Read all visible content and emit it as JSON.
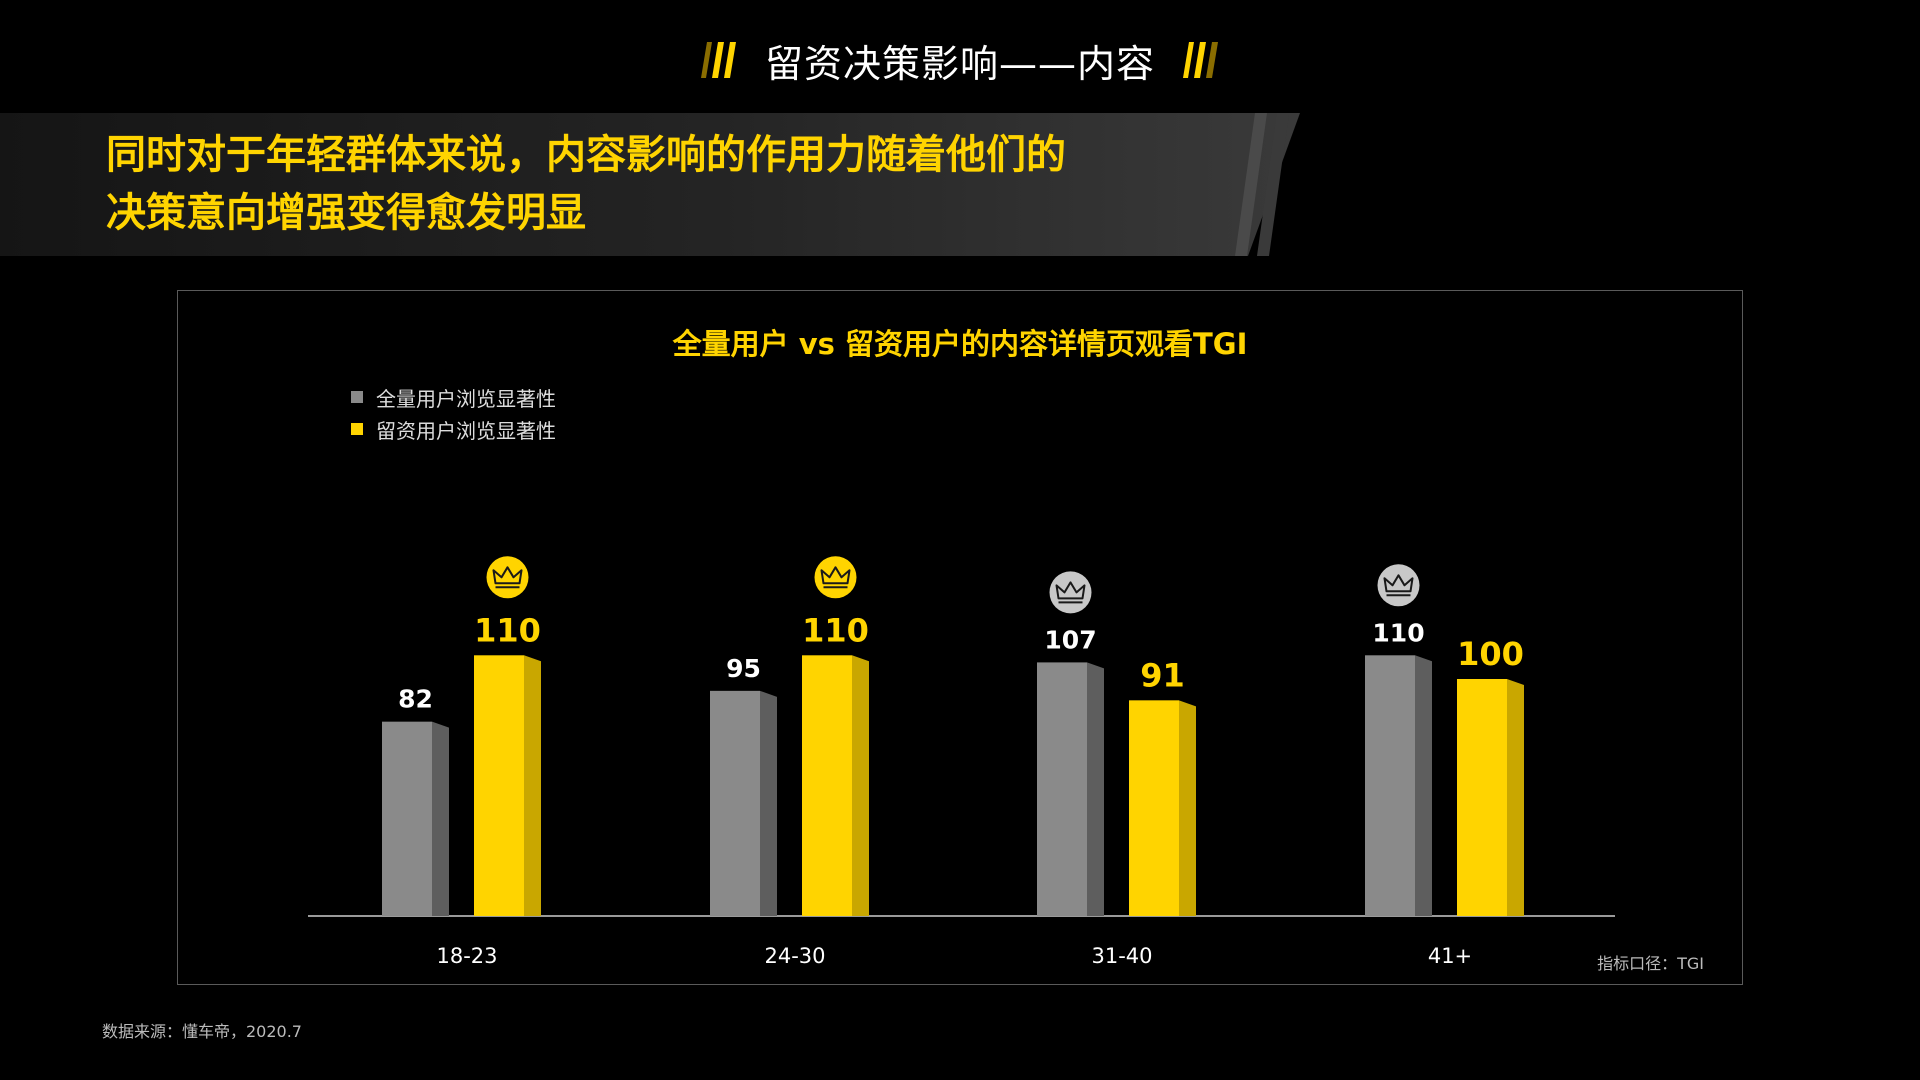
{
  "header": {
    "title": "留资决策影响——内容"
  },
  "headline": {
    "line1": "同时对于年轻群体来说，内容影响的作用力随着他们的",
    "line2": "决策意向增强变得愈发明显"
  },
  "colors": {
    "accent": "#FFD400",
    "gray": "#8a8a8a",
    "background": "#000000"
  },
  "chart_data": {
    "type": "bar",
    "title": "全量用户 vs 留资用户的内容详情页观看TGI",
    "categories": [
      "18-23",
      "24-30",
      "31-40",
      "41+"
    ],
    "series": [
      {
        "name": "全量用户浏览显著性",
        "values": [
          82,
          95,
          107,
          110
        ],
        "color": "#8a8a8a"
      },
      {
        "name": "留资用户浏览显著性",
        "values": [
          110,
          110,
          91,
          100
        ],
        "color": "#FFD400"
      }
    ],
    "crown_marks": [
      {
        "category": "18-23",
        "series": "留资用户浏览显著性",
        "icon": "crown-icon"
      },
      {
        "category": "24-30",
        "series": "留资用户浏览显著性",
        "icon": "crown-icon"
      },
      {
        "category": "31-40",
        "series": "全量用户浏览显著性",
        "icon": "crown-icon"
      },
      {
        "category": "41+",
        "series": "全量用户浏览显著性",
        "icon": "crown-icon"
      }
    ],
    "legend_position": "top-left",
    "grid": false,
    "note": "指标口径：TGI"
  },
  "footer": {
    "source": "数据来源：懂车帝，2020.7"
  }
}
